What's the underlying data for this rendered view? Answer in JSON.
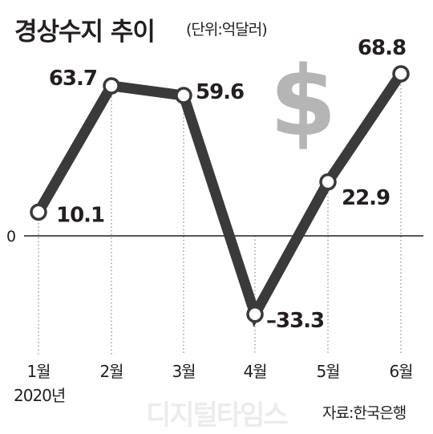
{
  "header": {
    "title": "경상수지 추이",
    "unit": "(단위:억달러)"
  },
  "footer": {
    "year": "2020년",
    "source": "자료:한국은행",
    "watermark": "디지털타임스"
  },
  "colors": {
    "line": "#3a3a3a",
    "marker_fill": "#ffffff",
    "text": "#231f20",
    "guide": "#888888",
    "dollar": "#b5b5b5"
  },
  "icons": {
    "decoration": "dollar-sign-icon"
  },
  "chart_data": {
    "type": "line",
    "title": "경상수지 추이",
    "unit_label": "(단위:억달러)",
    "categories": [
      "1월",
      "2월",
      "3월",
      "4월",
      "5월",
      "6월"
    ],
    "values": [
      10.1,
      63.7,
      59.6,
      -33.3,
      22.9,
      68.8
    ],
    "value_labels": [
      "10.1",
      "63.7",
      "59.6",
      "–33.3",
      "22.9",
      "68.8"
    ],
    "zero_label": "0",
    "grid": false,
    "legend": "none"
  }
}
